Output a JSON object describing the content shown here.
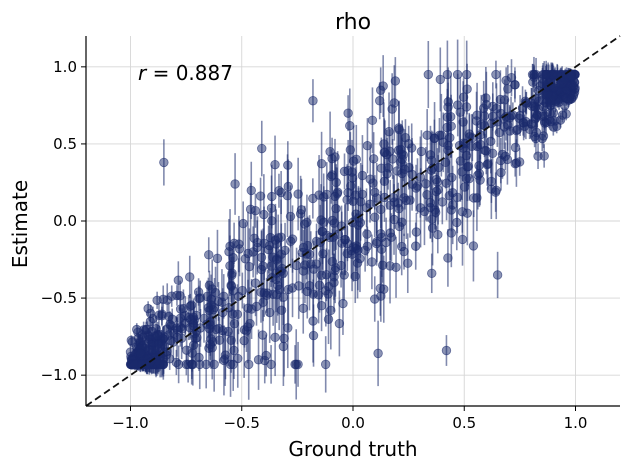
{
  "chart_data": {
    "type": "scatter",
    "title": "rho",
    "xlabel": "Ground truth",
    "ylabel": "Estimate",
    "annotation": {
      "symbol": "r",
      "text": " = 0.887"
    },
    "xlim": [
      -1.2,
      1.2
    ],
    "ylim": [
      -1.2,
      1.2
    ],
    "xticks": [
      -1.0,
      -0.5,
      0.0,
      0.5,
      1.0
    ],
    "xtick_labels": [
      "−1.0",
      "−0.5",
      "0.0",
      "0.5",
      "1.0"
    ],
    "yticks": [
      -1.0,
      -0.5,
      0.0,
      0.5,
      1.0
    ],
    "ytick_labels": [
      "−1.0",
      "−0.5",
      "0.0",
      "0.5",
      "1.0"
    ],
    "grid": true,
    "identity_line": true,
    "point_color": "#1a2a6c",
    "points_sample": [
      {
        "x": -0.85,
        "y": 0.38,
        "err": 0.15
      },
      {
        "x": -0.53,
        "y": 0.24,
        "err": 0.2
      },
      {
        "x": -0.41,
        "y": 0.47,
        "err": 0.18
      },
      {
        "x": -0.18,
        "y": 0.78,
        "err": 0.14
      },
      {
        "x": 0.12,
        "y": 0.78,
        "err": 0.12
      },
      {
        "x": 0.42,
        "y": -0.84,
        "err": 0.1
      },
      {
        "x": 0.65,
        "y": -0.35,
        "err": 0.15
      },
      {
        "x": 0.98,
        "y": 0.94,
        "err": 0.03
      },
      {
        "x": -1.0,
        "y": -0.85,
        "err": 0.05
      }
    ]
  }
}
